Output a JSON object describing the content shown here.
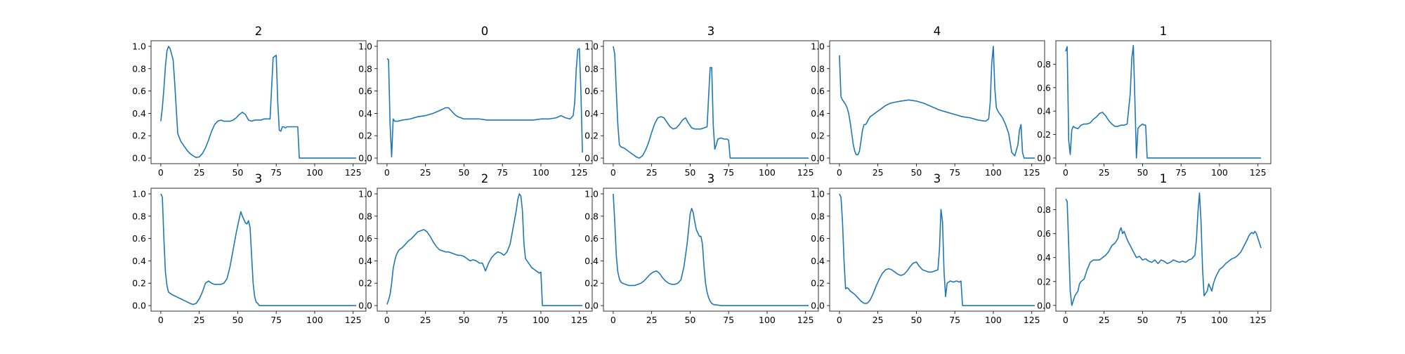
{
  "chart_data": [
    {
      "type": "line",
      "title": "2",
      "xlim": [
        -6.35,
        133.35
      ],
      "ylim": [
        -0.05,
        1.05
      ],
      "xticks": [
        "0",
        "25",
        "50",
        "75",
        "100",
        "125"
      ],
      "yticks": [
        "0.0",
        "0.2",
        "0.4",
        "0.6",
        "0.8",
        "1.0"
      ],
      "color": "#1f77b4",
      "x": [
        0,
        1,
        2,
        3,
        4,
        5,
        6,
        7,
        8,
        9,
        10,
        11,
        13,
        15,
        17,
        19,
        21,
        23,
        25,
        27,
        29,
        31,
        33,
        35,
        37,
        39,
        41,
        43,
        45,
        47,
        49,
        51,
        53,
        55,
        57,
        59,
        61,
        63,
        65,
        67,
        69,
        71,
        73,
        75,
        76,
        77,
        78,
        79,
        80,
        81,
        82,
        83,
        85,
        87,
        89,
        90,
        91,
        92,
        93,
        100,
        110,
        120,
        127
      ],
      "y": [
        0.33,
        0.45,
        0.62,
        0.82,
        0.96,
        1.0,
        0.98,
        0.93,
        0.88,
        0.68,
        0.45,
        0.22,
        0.15,
        0.11,
        0.07,
        0.04,
        0.02,
        0.005,
        0.01,
        0.04,
        0.09,
        0.16,
        0.24,
        0.3,
        0.33,
        0.34,
        0.33,
        0.33,
        0.33,
        0.34,
        0.36,
        0.39,
        0.41,
        0.39,
        0.34,
        0.33,
        0.34,
        0.34,
        0.34,
        0.35,
        0.35,
        0.35,
        0.9,
        0.92,
        0.5,
        0.25,
        0.24,
        0.28,
        0.28,
        0.27,
        0.28,
        0.28,
        0.28,
        0.28,
        0.28,
        0.0,
        0.0,
        0.0,
        0.0,
        0.0,
        0.0,
        0.0,
        0.0
      ]
    },
    {
      "type": "line",
      "title": "0",
      "xlim": [
        -6.35,
        133.35
      ],
      "ylim": [
        -0.05,
        1.05
      ],
      "xticks": [
        "0",
        "25",
        "50",
        "75",
        "100",
        "125"
      ],
      "yticks": [
        "0.0",
        "0.2",
        "0.4",
        "0.6",
        "0.8",
        "1.0"
      ],
      "color": "#1f77b4",
      "x": [
        0,
        1,
        2,
        3,
        4,
        5,
        7,
        10,
        15,
        20,
        25,
        30,
        35,
        38,
        40,
        42,
        44,
        46,
        48,
        50,
        55,
        60,
        65,
        70,
        75,
        80,
        85,
        90,
        95,
        100,
        105,
        110,
        113,
        116,
        119,
        121,
        122,
        123,
        124,
        125,
        126,
        127
      ],
      "y": [
        0.89,
        0.88,
        0.3,
        0.01,
        0.35,
        0.33,
        0.33,
        0.34,
        0.35,
        0.37,
        0.38,
        0.4,
        0.43,
        0.45,
        0.45,
        0.42,
        0.39,
        0.37,
        0.36,
        0.35,
        0.35,
        0.35,
        0.34,
        0.34,
        0.34,
        0.34,
        0.34,
        0.34,
        0.34,
        0.35,
        0.35,
        0.36,
        0.38,
        0.36,
        0.35,
        0.38,
        0.5,
        0.8,
        0.97,
        0.98,
        0.6,
        0.05
      ]
    },
    {
      "type": "line",
      "title": "3",
      "xlim": [
        -6.35,
        133.35
      ],
      "ylim": [
        -0.05,
        1.05
      ],
      "xticks": [
        "0",
        "25",
        "50",
        "75",
        "100",
        "125"
      ],
      "yticks": [
        "0.0",
        "0.2",
        "0.4",
        "0.6",
        "0.8",
        "1.0"
      ],
      "color": "#1f77b4",
      "x": [
        0,
        1,
        2,
        3,
        4,
        5,
        7,
        9,
        11,
        13,
        15,
        17,
        19,
        21,
        23,
        25,
        27,
        29,
        31,
        33,
        35,
        37,
        39,
        41,
        43,
        45,
        47,
        49,
        51,
        53,
        55,
        57,
        59,
        61,
        62,
        63,
        64,
        65,
        66,
        67,
        68,
        70,
        72,
        74,
        75,
        76,
        80,
        90,
        100,
        110,
        120,
        127
      ],
      "y": [
        1.0,
        0.93,
        0.6,
        0.3,
        0.12,
        0.1,
        0.09,
        0.07,
        0.05,
        0.03,
        0.01,
        0.0,
        0.02,
        0.07,
        0.14,
        0.23,
        0.31,
        0.36,
        0.37,
        0.36,
        0.32,
        0.28,
        0.26,
        0.27,
        0.3,
        0.34,
        0.36,
        0.31,
        0.27,
        0.26,
        0.26,
        0.26,
        0.27,
        0.28,
        0.55,
        0.81,
        0.81,
        0.3,
        0.08,
        0.12,
        0.17,
        0.18,
        0.17,
        0.17,
        0.16,
        0.0,
        0.0,
        0.0,
        0.0,
        0.0,
        0.0,
        0.0
      ]
    },
    {
      "type": "line",
      "title": "4",
      "xlim": [
        -6.35,
        133.35
      ],
      "ylim": [
        -0.05,
        1.05
      ],
      "xticks": [
        "0",
        "25",
        "50",
        "75",
        "100",
        "125"
      ],
      "yticks": [
        "0.0",
        "0.2",
        "0.4",
        "0.6",
        "0.8",
        "1.0"
      ],
      "color": "#1f77b4",
      "x": [
        0,
        1,
        2,
        3,
        4,
        5,
        6,
        7,
        8,
        9,
        10,
        11,
        12,
        13,
        14,
        15,
        16,
        17,
        18,
        19,
        20,
        22,
        24,
        26,
        28,
        30,
        33,
        36,
        40,
        45,
        50,
        55,
        60,
        65,
        70,
        75,
        80,
        85,
        90,
        95,
        97,
        98,
        99,
        100,
        101,
        102,
        103,
        104,
        106,
        108,
        110,
        112,
        114,
        116,
        117,
        118,
        119,
        120,
        121,
        122,
        124,
        127
      ],
      "y": [
        0.92,
        0.55,
        0.52,
        0.5,
        0.48,
        0.45,
        0.4,
        0.32,
        0.22,
        0.12,
        0.06,
        0.03,
        0.03,
        0.06,
        0.15,
        0.25,
        0.3,
        0.3,
        0.32,
        0.35,
        0.37,
        0.39,
        0.41,
        0.43,
        0.45,
        0.47,
        0.49,
        0.5,
        0.51,
        0.52,
        0.51,
        0.49,
        0.46,
        0.43,
        0.41,
        0.39,
        0.37,
        0.36,
        0.34,
        0.33,
        0.35,
        0.5,
        0.85,
        1.0,
        0.62,
        0.45,
        0.42,
        0.4,
        0.36,
        0.3,
        0.22,
        0.05,
        0.02,
        0.12,
        0.25,
        0.3,
        0.05,
        0.0,
        0.0,
        0.0,
        0.0,
        0.0
      ]
    },
    {
      "type": "line",
      "title": "1",
      "xlim": [
        -6.35,
        133.35
      ],
      "ylim": [
        -0.048,
        1.0
      ],
      "xticks": [
        "0",
        "25",
        "50",
        "75",
        "100",
        "125"
      ],
      "yticks": [
        "0.0",
        "0.2",
        "0.4",
        "0.6",
        "0.8"
      ],
      "color": "#1f77b4",
      "x": [
        0,
        1,
        2,
        3,
        4,
        5,
        6,
        8,
        10,
        12,
        14,
        16,
        18,
        20,
        22,
        24,
        26,
        28,
        30,
        32,
        34,
        36,
        38,
        40,
        42,
        43,
        44,
        45,
        46,
        47,
        48,
        49,
        50,
        51,
        52,
        53,
        54,
        60,
        70,
        80,
        90,
        100,
        110,
        120,
        127
      ],
      "y": [
        0.91,
        0.95,
        0.15,
        0.03,
        0.24,
        0.27,
        0.26,
        0.25,
        0.28,
        0.29,
        0.29,
        0.3,
        0.33,
        0.35,
        0.38,
        0.39,
        0.36,
        0.32,
        0.29,
        0.27,
        0.27,
        0.28,
        0.28,
        0.29,
        0.55,
        0.85,
        0.96,
        0.5,
        0.0,
        0.25,
        0.27,
        0.28,
        0.29,
        0.28,
        0.28,
        0.0,
        0.0,
        0.0,
        0.0,
        0.0,
        0.0,
        0.0,
        0.0,
        0.0,
        0.0
      ]
    },
    {
      "type": "line",
      "title": "3",
      "xlim": [
        -6.35,
        133.35
      ],
      "ylim": [
        -0.05,
        1.05
      ],
      "xticks": [
        "0",
        "25",
        "50",
        "75",
        "100",
        "125"
      ],
      "yticks": [
        "0.0",
        "0.2",
        "0.4",
        "0.6",
        "0.8",
        "1.0"
      ],
      "color": "#1f77b4",
      "x": [
        0,
        1,
        2,
        3,
        4,
        5,
        7,
        10,
        13,
        16,
        19,
        21,
        23,
        25,
        27,
        29,
        31,
        33,
        35,
        37,
        39,
        41,
        43,
        45,
        47,
        49,
        51,
        52,
        53,
        55,
        56,
        57,
        58,
        59,
        60,
        61,
        62,
        63,
        64,
        65,
        70,
        80,
        90,
        100,
        110,
        120,
        127
      ],
      "y": [
        1.0,
        0.97,
        0.6,
        0.3,
        0.18,
        0.12,
        0.1,
        0.08,
        0.06,
        0.04,
        0.02,
        0.01,
        0.02,
        0.06,
        0.12,
        0.2,
        0.22,
        0.2,
        0.19,
        0.19,
        0.19,
        0.2,
        0.24,
        0.35,
        0.5,
        0.65,
        0.78,
        0.84,
        0.8,
        0.74,
        0.73,
        0.76,
        0.7,
        0.45,
        0.2,
        0.08,
        0.03,
        0.02,
        0.0,
        0.0,
        0.0,
        0.0,
        0.0,
        0.0,
        0.0,
        0.0,
        0.0
      ]
    },
    {
      "type": "line",
      "title": "2",
      "xlim": [
        -6.35,
        133.35
      ],
      "ylim": [
        -0.05,
        1.05
      ],
      "xticks": [
        "0",
        "25",
        "50",
        "75",
        "100",
        "125"
      ],
      "yticks": [
        "0.0",
        "0.2",
        "0.4",
        "0.6",
        "0.8",
        "1.0"
      ],
      "color": "#1f77b4",
      "x": [
        0,
        1,
        2,
        3,
        4,
        5,
        6,
        7,
        8,
        10,
        12,
        14,
        16,
        18,
        20,
        22,
        24,
        26,
        28,
        30,
        32,
        34,
        36,
        38,
        40,
        42,
        44,
        46,
        48,
        50,
        52,
        54,
        56,
        58,
        60,
        62,
        64,
        66,
        68,
        70,
        72,
        74,
        76,
        78,
        80,
        82,
        84,
        85,
        86,
        87,
        88,
        89,
        90,
        92,
        94,
        96,
        98,
        99,
        100,
        101,
        102,
        110,
        120,
        127
      ],
      "y": [
        0.01,
        0.05,
        0.1,
        0.2,
        0.33,
        0.4,
        0.45,
        0.48,
        0.5,
        0.52,
        0.55,
        0.58,
        0.6,
        0.63,
        0.66,
        0.67,
        0.68,
        0.66,
        0.62,
        0.57,
        0.53,
        0.5,
        0.49,
        0.48,
        0.48,
        0.47,
        0.46,
        0.45,
        0.45,
        0.44,
        0.42,
        0.4,
        0.41,
        0.4,
        0.38,
        0.38,
        0.31,
        0.38,
        0.43,
        0.46,
        0.48,
        0.47,
        0.45,
        0.48,
        0.55,
        0.7,
        0.85,
        0.95,
        1.0,
        0.98,
        0.85,
        0.55,
        0.42,
        0.38,
        0.34,
        0.32,
        0.3,
        0.29,
        0.3,
        0.0,
        0.0,
        0.0,
        0.0,
        0.0
      ]
    },
    {
      "type": "line",
      "title": "3",
      "xlim": [
        -6.35,
        133.35
      ],
      "ylim": [
        -0.05,
        1.05
      ],
      "xticks": [
        "0",
        "25",
        "50",
        "75",
        "100",
        "125"
      ],
      "yticks": [
        "0.0",
        "0.2",
        "0.4",
        "0.6",
        "0.8",
        "1.0"
      ],
      "color": "#1f77b4",
      "x": [
        0,
        1,
        2,
        3,
        4,
        5,
        6,
        8,
        10,
        12,
        14,
        16,
        18,
        20,
        22,
        24,
        26,
        28,
        30,
        32,
        34,
        36,
        38,
        40,
        42,
        44,
        46,
        48,
        49,
        50,
        51,
        52,
        53,
        54,
        55,
        56,
        57,
        58,
        59,
        60,
        61,
        62,
        63,
        64,
        65,
        70,
        80,
        90,
        100,
        110,
        120,
        127
      ],
      "y": [
        1.0,
        0.75,
        0.45,
        0.3,
        0.24,
        0.21,
        0.2,
        0.19,
        0.18,
        0.18,
        0.18,
        0.19,
        0.2,
        0.22,
        0.25,
        0.28,
        0.3,
        0.31,
        0.29,
        0.25,
        0.22,
        0.2,
        0.19,
        0.19,
        0.2,
        0.23,
        0.35,
        0.55,
        0.68,
        0.82,
        0.87,
        0.83,
        0.75,
        0.68,
        0.65,
        0.62,
        0.62,
        0.55,
        0.35,
        0.2,
        0.12,
        0.07,
        0.04,
        0.02,
        0.01,
        0.0,
        0.0,
        0.0,
        0.0,
        0.0,
        0.0,
        0.0
      ]
    },
    {
      "type": "line",
      "title": "3",
      "xlim": [
        -6.35,
        133.35
      ],
      "ylim": [
        -0.05,
        1.05
      ],
      "xticks": [
        "0",
        "25",
        "50",
        "75",
        "100",
        "125"
      ],
      "yticks": [
        "0.0",
        "0.2",
        "0.4",
        "0.6",
        "0.8",
        "1.0"
      ],
      "color": "#1f77b4",
      "x": [
        0,
        1,
        2,
        3,
        4,
        5,
        6,
        7,
        8,
        10,
        12,
        14,
        16,
        18,
        20,
        22,
        24,
        26,
        28,
        30,
        32,
        34,
        36,
        38,
        40,
        42,
        44,
        46,
        48,
        50,
        52,
        54,
        56,
        58,
        60,
        62,
        64,
        65,
        66,
        67,
        68,
        69,
        70,
        72,
        74,
        76,
        78,
        79,
        80,
        90,
        100,
        110,
        120,
        127
      ],
      "y": [
        1.0,
        0.97,
        0.75,
        0.4,
        0.15,
        0.16,
        0.15,
        0.13,
        0.12,
        0.1,
        0.07,
        0.04,
        0.02,
        0.02,
        0.05,
        0.11,
        0.18,
        0.24,
        0.29,
        0.32,
        0.33,
        0.32,
        0.3,
        0.28,
        0.27,
        0.28,
        0.31,
        0.35,
        0.38,
        0.39,
        0.35,
        0.32,
        0.31,
        0.3,
        0.3,
        0.31,
        0.32,
        0.5,
        0.86,
        0.75,
        0.3,
        0.08,
        0.2,
        0.22,
        0.21,
        0.22,
        0.21,
        0.22,
        0.0,
        0.0,
        0.0,
        0.0,
        0.0,
        0.0
      ]
    },
    {
      "type": "line",
      "title": "1",
      "xlim": [
        -6.35,
        133.35
      ],
      "ylim": [
        -0.048,
        0.98
      ],
      "xticks": [
        "0",
        "25",
        "50",
        "75",
        "100",
        "125"
      ],
      "yticks": [
        "0.0",
        "0.2",
        "0.4",
        "0.6",
        "0.8"
      ],
      "color": "#1f77b4",
      "x": [
        0,
        1,
        2,
        3,
        4,
        5,
        6,
        7,
        8,
        9,
        10,
        12,
        14,
        16,
        18,
        20,
        22,
        24,
        26,
        28,
        30,
        32,
        34,
        35,
        36,
        37,
        38,
        40,
        42,
        44,
        46,
        48,
        50,
        52,
        54,
        56,
        58,
        60,
        62,
        64,
        66,
        68,
        70,
        72,
        74,
        76,
        78,
        80,
        82,
        84,
        85,
        86,
        87,
        88,
        89,
        90,
        91,
        92,
        93,
        94,
        95,
        96,
        97,
        98,
        100,
        102,
        104,
        106,
        108,
        110,
        112,
        114,
        116,
        118,
        119,
        120,
        121,
        122,
        123,
        124,
        125,
        126,
        127
      ],
      "y": [
        0.89,
        0.87,
        0.5,
        0.12,
        0.0,
        0.04,
        0.08,
        0.1,
        0.12,
        0.18,
        0.2,
        0.22,
        0.3,
        0.36,
        0.38,
        0.38,
        0.38,
        0.4,
        0.42,
        0.45,
        0.5,
        0.52,
        0.56,
        0.62,
        0.65,
        0.6,
        0.62,
        0.55,
        0.5,
        0.45,
        0.4,
        0.41,
        0.38,
        0.39,
        0.37,
        0.36,
        0.38,
        0.35,
        0.38,
        0.37,
        0.35,
        0.36,
        0.38,
        0.37,
        0.36,
        0.37,
        0.36,
        0.38,
        0.39,
        0.42,
        0.55,
        0.78,
        0.94,
        0.7,
        0.3,
        0.08,
        0.1,
        0.12,
        0.18,
        0.15,
        0.12,
        0.18,
        0.22,
        0.25,
        0.3,
        0.32,
        0.35,
        0.37,
        0.39,
        0.4,
        0.42,
        0.45,
        0.5,
        0.55,
        0.58,
        0.6,
        0.61,
        0.6,
        0.62,
        0.6,
        0.56,
        0.52,
        0.48
      ]
    }
  ]
}
